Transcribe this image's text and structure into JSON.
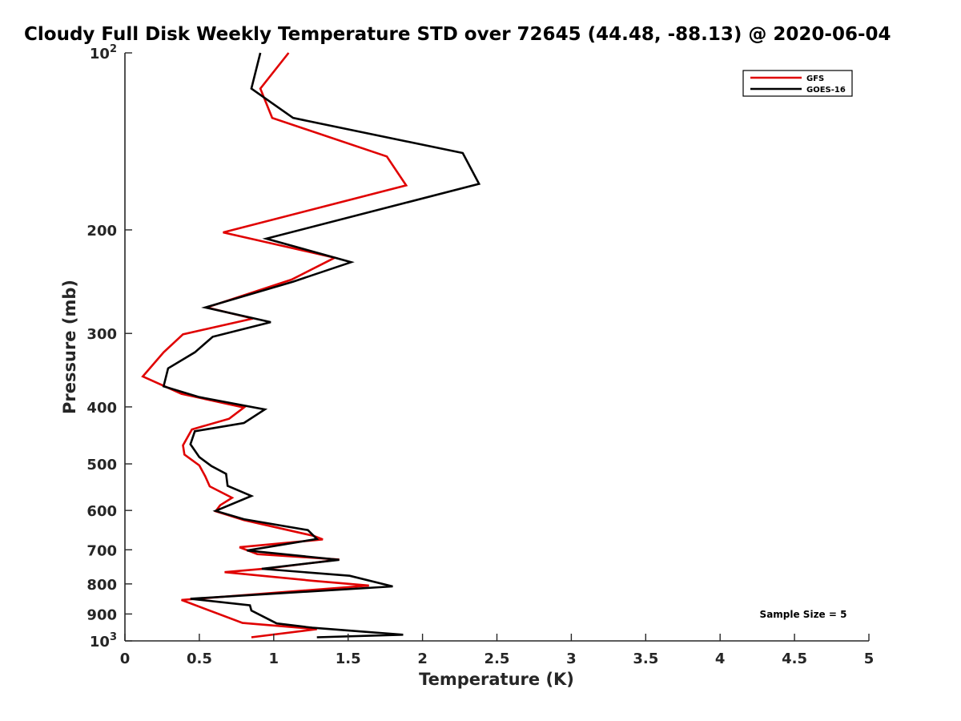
{
  "chart_data": {
    "type": "line",
    "title": "Cloudy Full Disk Weekly Temperature STD over 72645 (44.48, -88.13) @ 2020-06-04",
    "xlabel": "Temperature (K)",
    "ylabel": "Pressure (mb)",
    "xlim": [
      0,
      5
    ],
    "ylim": [
      100,
      1000
    ],
    "y_scale": "log",
    "y_reversed": true,
    "x_ticks": [
      {
        "value": 0,
        "label": "0"
      },
      {
        "value": 0.5,
        "label": "0.5"
      },
      {
        "value": 1,
        "label": "1"
      },
      {
        "value": 1.5,
        "label": "1.5"
      },
      {
        "value": 2,
        "label": "2"
      },
      {
        "value": 2.5,
        "label": "2.5"
      },
      {
        "value": 3,
        "label": "3"
      },
      {
        "value": 3.5,
        "label": "3.5"
      },
      {
        "value": 4,
        "label": "4"
      },
      {
        "value": 4.5,
        "label": "4.5"
      },
      {
        "value": 5,
        "label": "5"
      }
    ],
    "y_ticks": [
      {
        "value": 100,
        "base": "10",
        "exp": "2"
      },
      {
        "value": 200,
        "label": "200"
      },
      {
        "value": 300,
        "label": "300"
      },
      {
        "value": 400,
        "label": "400"
      },
      {
        "value": 500,
        "label": "500"
      },
      {
        "value": 600,
        "label": "600"
      },
      {
        "value": 700,
        "label": "700"
      },
      {
        "value": 800,
        "label": "800"
      },
      {
        "value": 900,
        "label": "900"
      },
      {
        "value": 1000,
        "base": "10",
        "exp": "3"
      }
    ],
    "legend": {
      "position": "top-right"
    },
    "annotation": "Sample Size = 5",
    "series": [
      {
        "name": "GFS",
        "color": "#e00000",
        "points": [
          [
            1.1,
            100
          ],
          [
            0.91,
            115
          ],
          [
            0.99,
            129
          ],
          [
            1.76,
            150
          ],
          [
            1.89,
            168
          ],
          [
            0.66,
            202
          ],
          [
            1.41,
            223
          ],
          [
            1.12,
            243
          ],
          [
            0.55,
            271
          ],
          [
            0.86,
            283
          ],
          [
            0.39,
            301
          ],
          [
            0.26,
            323
          ],
          [
            0.12,
            355
          ],
          [
            0.38,
            380
          ],
          [
            0.8,
            401
          ],
          [
            0.7,
            419
          ],
          [
            0.45,
            437
          ],
          [
            0.39,
            465
          ],
          [
            0.4,
            482
          ],
          [
            0.5,
            503
          ],
          [
            0.54,
            525
          ],
          [
            0.57,
            546
          ],
          [
            0.72,
            571
          ],
          [
            0.64,
            588
          ],
          [
            0.61,
            602
          ],
          [
            0.8,
            623
          ],
          [
            1.27,
            663
          ],
          [
            1.33,
            672
          ],
          [
            0.77,
            693
          ],
          [
            0.89,
            712
          ],
          [
            1.44,
            727
          ],
          [
            0.96,
            753
          ],
          [
            0.67,
            764
          ],
          [
            1.26,
            790
          ],
          [
            1.64,
            805
          ],
          [
            0.38,
            852
          ],
          [
            0.79,
            932
          ],
          [
            1.29,
            955
          ],
          [
            0.85,
            986
          ]
        ]
      },
      {
        "name": "GOES-16",
        "color": "#000000",
        "points": [
          [
            0.91,
            100
          ],
          [
            0.85,
            115
          ],
          [
            1.13,
            129
          ],
          [
            2.27,
            148
          ],
          [
            2.38,
            167
          ],
          [
            0.95,
            207
          ],
          [
            1.52,
            227
          ],
          [
            1.13,
            245
          ],
          [
            0.54,
            271
          ],
          [
            0.98,
            287
          ],
          [
            0.59,
            304
          ],
          [
            0.47,
            323
          ],
          [
            0.29,
            344
          ],
          [
            0.26,
            369
          ],
          [
            0.5,
            385
          ],
          [
            0.94,
            404
          ],
          [
            0.8,
            426
          ],
          [
            0.47,
            440
          ],
          [
            0.44,
            463
          ],
          [
            0.5,
            487
          ],
          [
            0.58,
            504
          ],
          [
            0.68,
            520
          ],
          [
            0.69,
            545
          ],
          [
            0.85,
            567
          ],
          [
            0.61,
            601
          ],
          [
            0.8,
            621
          ],
          [
            1.23,
            648
          ],
          [
            1.29,
            671
          ],
          [
            0.82,
            702
          ],
          [
            1.44,
            728
          ],
          [
            0.92,
            754
          ],
          [
            1.51,
            775
          ],
          [
            1.8,
            808
          ],
          [
            0.44,
            848
          ],
          [
            0.84,
            870
          ],
          [
            0.85,
            888
          ],
          [
            1.02,
            934
          ],
          [
            1.26,
            950
          ],
          [
            1.87,
            976
          ],
          [
            1.29,
            986
          ]
        ]
      }
    ]
  }
}
